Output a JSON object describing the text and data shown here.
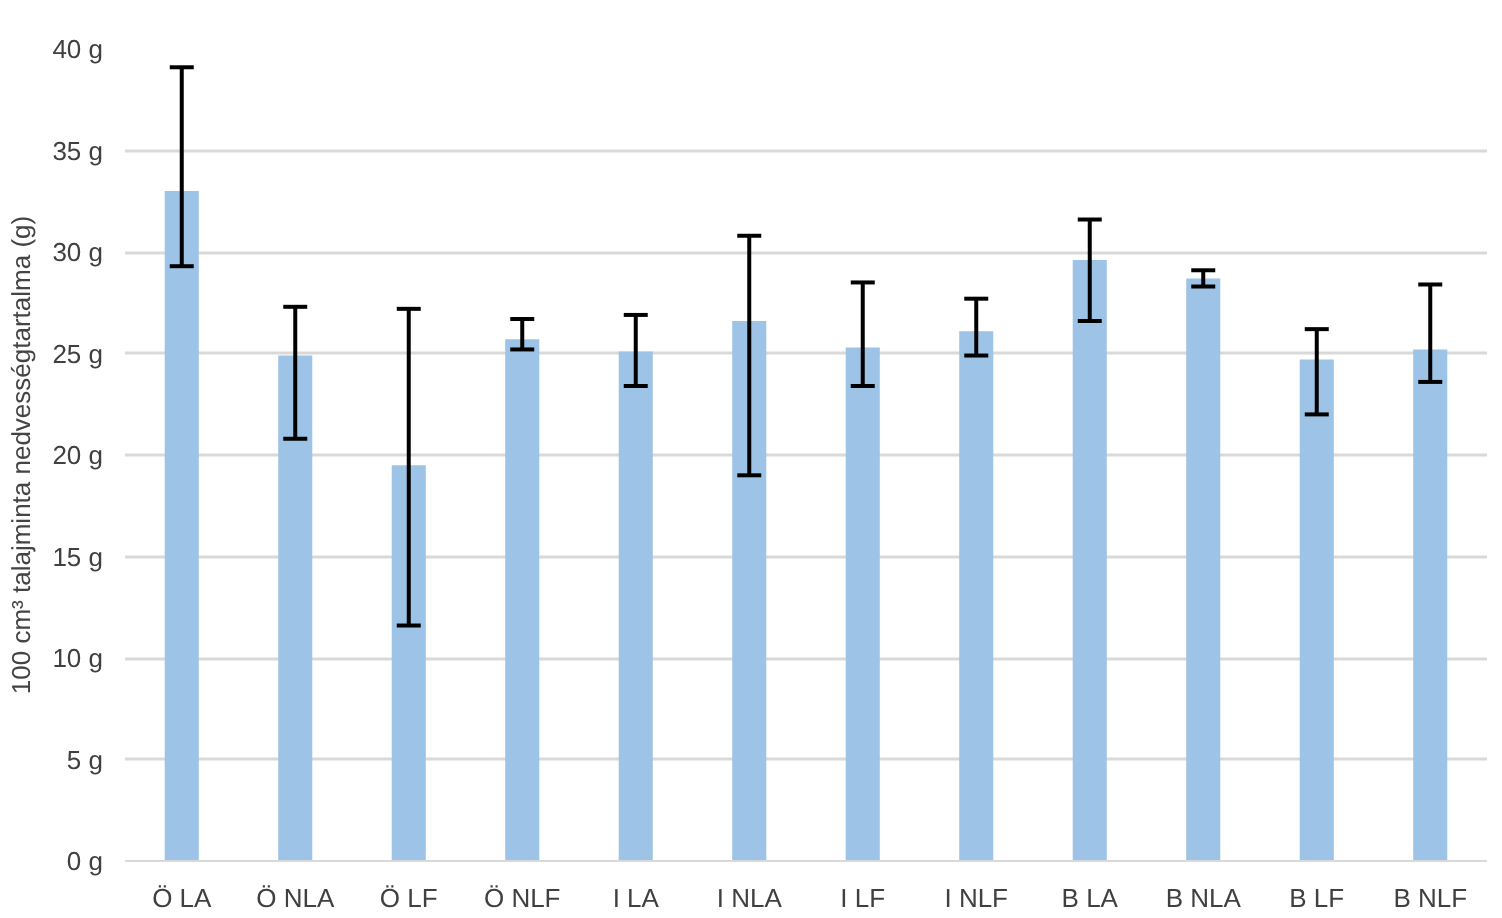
{
  "chart_data": {
    "type": "bar",
    "ylabel": "100 cm³ talajminta nedvességtartalma (g)",
    "categories": [
      "Ö LA",
      "Ö NLA",
      "Ö LF",
      "Ö NLF",
      "I LA",
      "I NLA",
      "I LF",
      "I NLF",
      "B LA",
      "B NLA",
      "B LF",
      "B NLF"
    ],
    "values": [
      33.0,
      24.9,
      19.5,
      25.7,
      25.1,
      26.6,
      25.3,
      26.1,
      29.6,
      28.7,
      24.7,
      25.2
    ],
    "errors": [
      [
        29.3,
        39.1
      ],
      [
        20.8,
        27.3
      ],
      [
        11.6,
        27.2
      ],
      [
        25.2,
        26.7
      ],
      [
        23.4,
        26.9
      ],
      [
        19.0,
        30.8
      ],
      [
        23.4,
        28.5
      ],
      [
        24.9,
        27.7
      ],
      [
        26.6,
        31.6
      ],
      [
        28.3,
        29.1
      ],
      [
        22.0,
        26.2
      ],
      [
        23.6,
        28.4
      ]
    ],
    "color": "#9dc3e6",
    "ylim": [
      0,
      40
    ],
    "yticks": [
      {
        "value": 0,
        "label": "0 g"
      },
      {
        "value": 5,
        "label": "5 g"
      },
      {
        "value": 10,
        "label": "10 g"
      },
      {
        "value": 15,
        "label": "15 g"
      },
      {
        "value": 20,
        "label": "20 g"
      },
      {
        "value": 25,
        "label": "25 g"
      },
      {
        "value": 30,
        "label": "30 g"
      },
      {
        "value": 35,
        "label": "35 g"
      },
      {
        "value": 40,
        "label": "40 g"
      }
    ],
    "grid": "y"
  }
}
